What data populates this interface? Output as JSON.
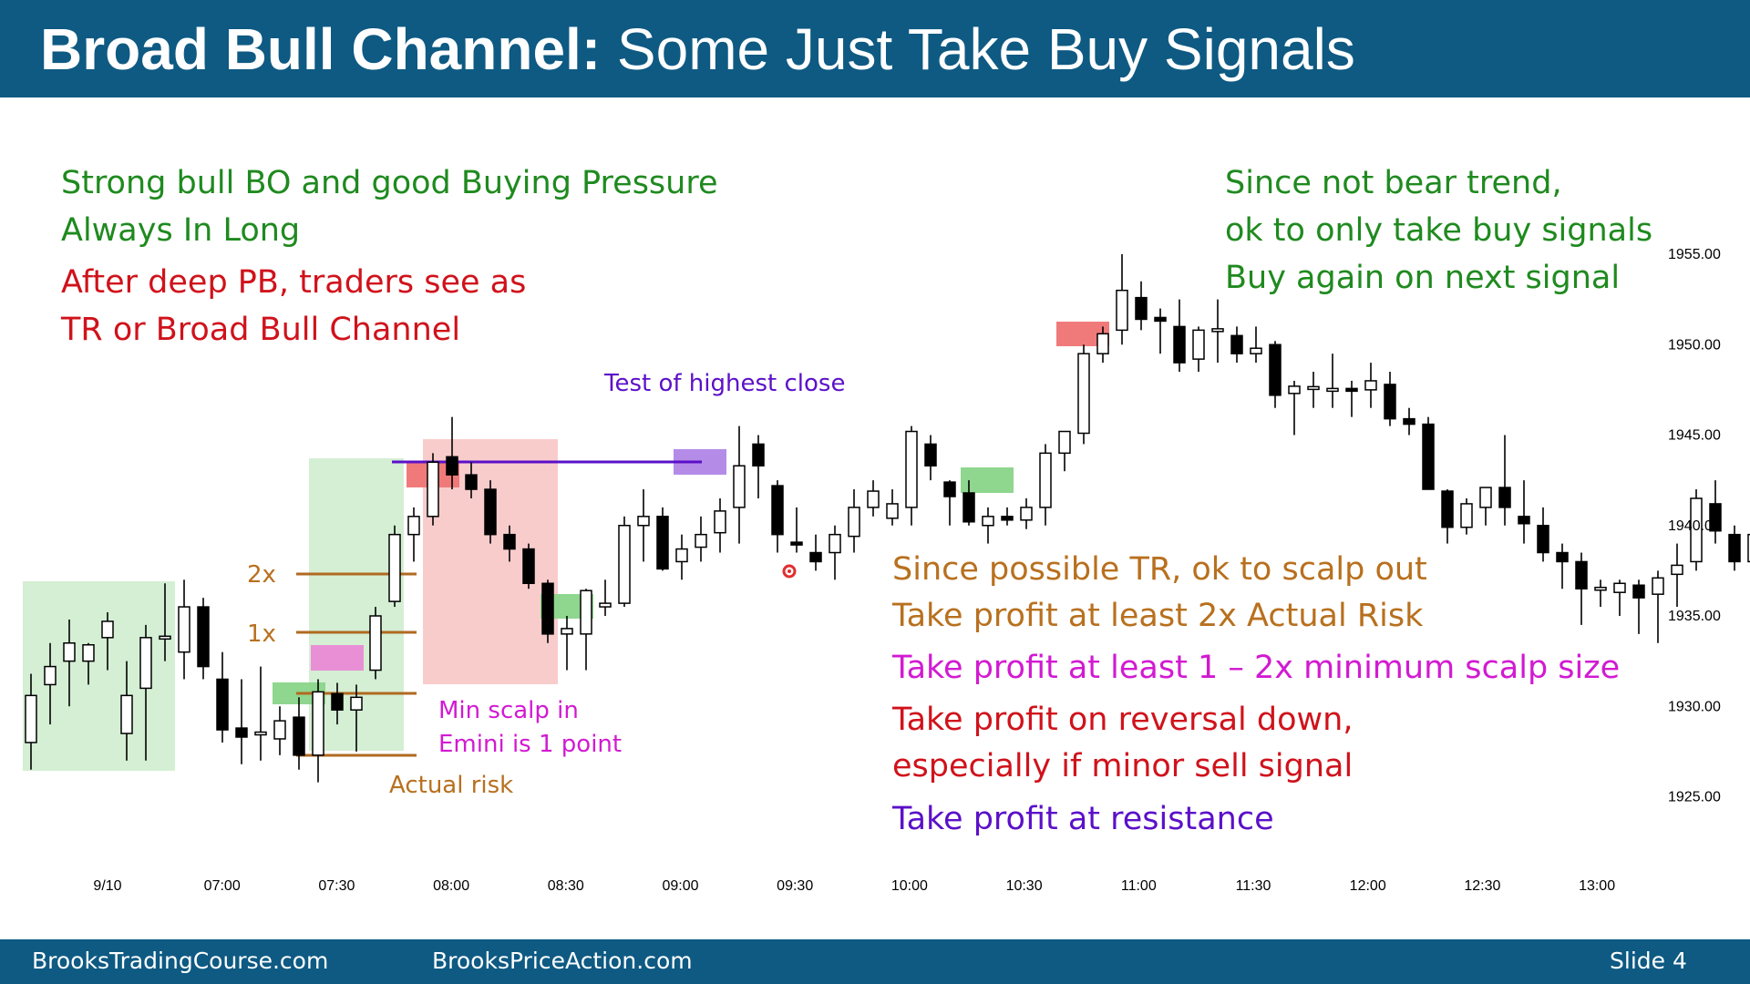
{
  "header": {
    "title_bold": "Broad Bull Channel:",
    "title_rest": " Some Just Take Buy Signals"
  },
  "footer": {
    "site1": "BrooksTradingCourse.com",
    "site2": "BrooksPriceAction.com",
    "slide": "Slide  4"
  },
  "colors": {
    "header_bg": "#0e5a83",
    "green_text": "#1f8a1f",
    "red_text": "#d0121b",
    "orange_text": "#b8701e",
    "magenta_text": "#d21ad2",
    "purple_text": "#5b10c8"
  },
  "annotations": {
    "green_left": [
      "Strong bull BO and good Buying Pressure",
      "Always In Long"
    ],
    "red_left": [
      "After deep PB, traders see as",
      "TR or Broad Bull Channel"
    ],
    "green_right": [
      "Since not bear trend,",
      "ok to only take buy signals",
      "Buy again on next signal"
    ],
    "test_close": "Test of highest close",
    "label_2x": "2x",
    "label_1x": "1x",
    "min_scalp": [
      "Min scalp in",
      "Emini is 1 point"
    ],
    "actual_risk": "Actual risk",
    "orange_right": [
      "Since possible TR, ok to scalp out",
      "Take profit at least 2x Actual Risk"
    ],
    "magenta_right": "Take profit at least 1 – 2x minimum scalp size",
    "red_right": [
      "Take profit on reversal down,",
      "especially if minor sell signal"
    ],
    "purple_right": "Take profit at resistance"
  },
  "chart_data": {
    "type": "candlestick",
    "title": "",
    "xlabel": "",
    "ylabel": "",
    "ylim": [
      1922,
      1958
    ],
    "y_ticks": [
      "1955.00",
      "1950.00",
      "1945.00",
      "1940.00",
      "1935.00",
      "1930.00",
      "1925.00"
    ],
    "x_ticks": [
      "9/10",
      "07:00",
      "07:30",
      "08:00",
      "08:30",
      "09:00",
      "09:30",
      "10:00",
      "10:30",
      "11:00",
      "11:30",
      "12:00",
      "12:30",
      "13:00"
    ],
    "candles": [
      {
        "o": 1928.0,
        "h": 1931.8,
        "l": 1926.5,
        "c": 1930.6
      },
      {
        "o": 1931.2,
        "h": 1933.5,
        "l": 1929.0,
        "c": 1932.2
      },
      {
        "o": 1932.5,
        "h": 1934.8,
        "l": 1930.0,
        "c": 1933.5
      },
      {
        "o": 1932.5,
        "h": 1933.5,
        "l": 1931.2,
        "c": 1933.4
      },
      {
        "o": 1933.8,
        "h": 1935.2,
        "l": 1932.0,
        "c": 1934.7
      },
      {
        "o": 1928.5,
        "h": 1932.5,
        "l": 1927.0,
        "c": 1930.6
      },
      {
        "o": 1931.0,
        "h": 1934.5,
        "l": 1927.0,
        "c": 1933.8
      },
      {
        "o": 1933.7,
        "h": 1936.8,
        "l": 1932.5,
        "c": 1933.8
      },
      {
        "o": 1933.0,
        "h": 1937.0,
        "l": 1931.5,
        "c": 1935.5
      },
      {
        "o": 1935.5,
        "h": 1936.0,
        "l": 1931.5,
        "c": 1932.2
      },
      {
        "o": 1931.5,
        "h": 1933.0,
        "l": 1928.0,
        "c": 1928.7
      },
      {
        "o": 1928.8,
        "h": 1931.5,
        "l": 1926.8,
        "c": 1928.3
      },
      {
        "o": 1928.5,
        "h": 1932.2,
        "l": 1927.0,
        "c": 1928.5
      },
      {
        "o": 1928.2,
        "h": 1930.0,
        "l": 1927.3,
        "c": 1929.2
      },
      {
        "o": 1929.4,
        "h": 1930.5,
        "l": 1926.5,
        "c": 1927.3
      },
      {
        "o": 1927.3,
        "h": 1931.5,
        "l": 1925.8,
        "c": 1930.8
      },
      {
        "o": 1930.7,
        "h": 1931.3,
        "l": 1929.0,
        "c": 1929.8
      },
      {
        "o": 1929.8,
        "h": 1931.2,
        "l": 1927.5,
        "c": 1930.5
      },
      {
        "o": 1932.0,
        "h": 1935.5,
        "l": 1931.5,
        "c": 1935.0
      },
      {
        "o": 1935.8,
        "h": 1940.0,
        "l": 1935.5,
        "c": 1939.5
      },
      {
        "o": 1939.5,
        "h": 1941.0,
        "l": 1938.0,
        "c": 1940.5
      },
      {
        "o": 1940.5,
        "h": 1944.0,
        "l": 1940.0,
        "c": 1943.5
      },
      {
        "o": 1943.8,
        "h": 1946.0,
        "l": 1942.0,
        "c": 1942.8
      },
      {
        "o": 1942.8,
        "h": 1943.5,
        "l": 1941.5,
        "c": 1942.0
      },
      {
        "o": 1942.0,
        "h": 1942.5,
        "l": 1939.0,
        "c": 1939.5
      },
      {
        "o": 1939.5,
        "h": 1940.0,
        "l": 1938.0,
        "c": 1938.7
      },
      {
        "o": 1938.7,
        "h": 1939.0,
        "l": 1936.5,
        "c": 1936.8
      },
      {
        "o": 1936.8,
        "h": 1937.0,
        "l": 1933.5,
        "c": 1934.0
      },
      {
        "o": 1934.0,
        "h": 1935.0,
        "l": 1932.0,
        "c": 1934.3
      },
      {
        "o": 1934.0,
        "h": 1936.5,
        "l": 1932.0,
        "c": 1936.4
      },
      {
        "o": 1935.5,
        "h": 1937.0,
        "l": 1935.0,
        "c": 1935.7
      },
      {
        "o": 1935.7,
        "h": 1940.5,
        "l": 1935.5,
        "c": 1940.0
      },
      {
        "o": 1940.0,
        "h": 1942.0,
        "l": 1938.0,
        "c": 1940.5
      },
      {
        "o": 1940.5,
        "h": 1941.0,
        "l": 1937.5,
        "c": 1937.6
      },
      {
        "o": 1938.0,
        "h": 1939.5,
        "l": 1937.0,
        "c": 1938.7
      },
      {
        "o": 1938.8,
        "h": 1940.5,
        "l": 1938.0,
        "c": 1939.5
      },
      {
        "o": 1939.6,
        "h": 1941.5,
        "l": 1938.5,
        "c": 1940.8
      },
      {
        "o": 1941.0,
        "h": 1945.5,
        "l": 1939.0,
        "c": 1943.3
      },
      {
        "o": 1944.5,
        "h": 1945.0,
        "l": 1941.5,
        "c": 1943.3
      },
      {
        "o": 1942.2,
        "h": 1942.5,
        "l": 1938.5,
        "c": 1939.5
      },
      {
        "o": 1939.0,
        "h": 1941.0,
        "l": 1938.5,
        "c": 1938.9
      },
      {
        "o": 1938.5,
        "h": 1939.5,
        "l": 1937.5,
        "c": 1938.0
      },
      {
        "o": 1938.5,
        "h": 1940.0,
        "l": 1937.0,
        "c": 1939.5
      },
      {
        "o": 1939.4,
        "h": 1942.0,
        "l": 1938.5,
        "c": 1941.0
      },
      {
        "o": 1941.0,
        "h": 1942.5,
        "l": 1940.5,
        "c": 1941.9
      },
      {
        "o": 1940.4,
        "h": 1942.0,
        "l": 1940.0,
        "c": 1941.2
      },
      {
        "o": 1941.0,
        "h": 1945.5,
        "l": 1940.0,
        "c": 1945.2
      },
      {
        "o": 1944.5,
        "h": 1945.0,
        "l": 1942.5,
        "c": 1943.3
      },
      {
        "o": 1942.4,
        "h": 1942.5,
        "l": 1940.0,
        "c": 1941.6
      },
      {
        "o": 1941.8,
        "h": 1942.5,
        "l": 1940.0,
        "c": 1940.2
      },
      {
        "o": 1940.0,
        "h": 1941.0,
        "l": 1939.0,
        "c": 1940.5
      },
      {
        "o": 1940.5,
        "h": 1941.0,
        "l": 1940.0,
        "c": 1940.3
      },
      {
        "o": 1940.3,
        "h": 1941.5,
        "l": 1939.8,
        "c": 1941.0
      },
      {
        "o": 1941.0,
        "h": 1944.5,
        "l": 1940.0,
        "c": 1944.0
      },
      {
        "o": 1944.0,
        "h": 1945.0,
        "l": 1943.0,
        "c": 1945.2
      },
      {
        "o": 1945.1,
        "h": 1950.0,
        "l": 1944.5,
        "c": 1949.5
      },
      {
        "o": 1949.5,
        "h": 1951.0,
        "l": 1949.0,
        "c": 1950.6
      },
      {
        "o": 1950.8,
        "h": 1955.0,
        "l": 1950.0,
        "c": 1953.0
      },
      {
        "o": 1952.6,
        "h": 1953.5,
        "l": 1950.8,
        "c": 1951.4
      },
      {
        "o": 1951.5,
        "h": 1952.0,
        "l": 1949.5,
        "c": 1951.3
      },
      {
        "o": 1951.0,
        "h": 1952.5,
        "l": 1948.5,
        "c": 1949.0
      },
      {
        "o": 1949.2,
        "h": 1951.0,
        "l": 1948.5,
        "c": 1950.8
      },
      {
        "o": 1950.8,
        "h": 1952.5,
        "l": 1949.0,
        "c": 1950.8
      },
      {
        "o": 1950.5,
        "h": 1951.0,
        "l": 1949.0,
        "c": 1949.5
      },
      {
        "o": 1949.5,
        "h": 1951.0,
        "l": 1949.0,
        "c": 1949.8
      },
      {
        "o": 1950.0,
        "h": 1950.2,
        "l": 1946.5,
        "c": 1947.2
      },
      {
        "o": 1947.3,
        "h": 1948.0,
        "l": 1945.0,
        "c": 1947.7
      },
      {
        "o": 1947.6,
        "h": 1948.5,
        "l": 1946.5,
        "c": 1947.6
      },
      {
        "o": 1947.5,
        "h": 1949.5,
        "l": 1946.5,
        "c": 1947.5
      },
      {
        "o": 1947.5,
        "h": 1948.0,
        "l": 1946.0,
        "c": 1947.4
      },
      {
        "o": 1947.5,
        "h": 1949.0,
        "l": 1946.5,
        "c": 1948.0
      },
      {
        "o": 1947.8,
        "h": 1948.5,
        "l": 1945.5,
        "c": 1945.9
      },
      {
        "o": 1945.9,
        "h": 1946.5,
        "l": 1945.0,
        "c": 1945.6
      },
      {
        "o": 1945.6,
        "h": 1946.0,
        "l": 1942.0,
        "c": 1942.0
      },
      {
        "o": 1941.9,
        "h": 1942.0,
        "l": 1939.0,
        "c": 1939.9
      },
      {
        "o": 1939.9,
        "h": 1941.5,
        "l": 1939.5,
        "c": 1941.2
      },
      {
        "o": 1941.0,
        "h": 1942.0,
        "l": 1940.0,
        "c": 1942.1
      },
      {
        "o": 1942.1,
        "h": 1945.0,
        "l": 1940.0,
        "c": 1941.0
      },
      {
        "o": 1940.5,
        "h": 1942.5,
        "l": 1939.0,
        "c": 1940.1
      },
      {
        "o": 1940.0,
        "h": 1941.0,
        "l": 1938.0,
        "c": 1938.5
      },
      {
        "o": 1938.5,
        "h": 1939.0,
        "l": 1936.5,
        "c": 1938.0
      },
      {
        "o": 1938.0,
        "h": 1938.5,
        "l": 1934.5,
        "c": 1936.5
      },
      {
        "o": 1936.5,
        "h": 1937.0,
        "l": 1935.5,
        "c": 1936.5
      },
      {
        "o": 1936.3,
        "h": 1937.0,
        "l": 1935.0,
        "c": 1936.8
      },
      {
        "o": 1936.7,
        "h": 1937.0,
        "l": 1934.0,
        "c": 1936.0
      },
      {
        "o": 1936.2,
        "h": 1937.5,
        "l": 1933.5,
        "c": 1937.1
      },
      {
        "o": 1937.3,
        "h": 1939.0,
        "l": 1935.5,
        "c": 1937.8
      },
      {
        "o": 1938.0,
        "h": 1942.0,
        "l": 1937.5,
        "c": 1941.5
      },
      {
        "o": 1941.2,
        "h": 1942.5,
        "l": 1939.0,
        "c": 1939.7
      },
      {
        "o": 1939.5,
        "h": 1940.0,
        "l": 1937.5,
        "c": 1938.0
      },
      {
        "o": 1938.0,
        "h": 1941.0,
        "l": 1936.5,
        "c": 1939.5
      }
    ]
  }
}
